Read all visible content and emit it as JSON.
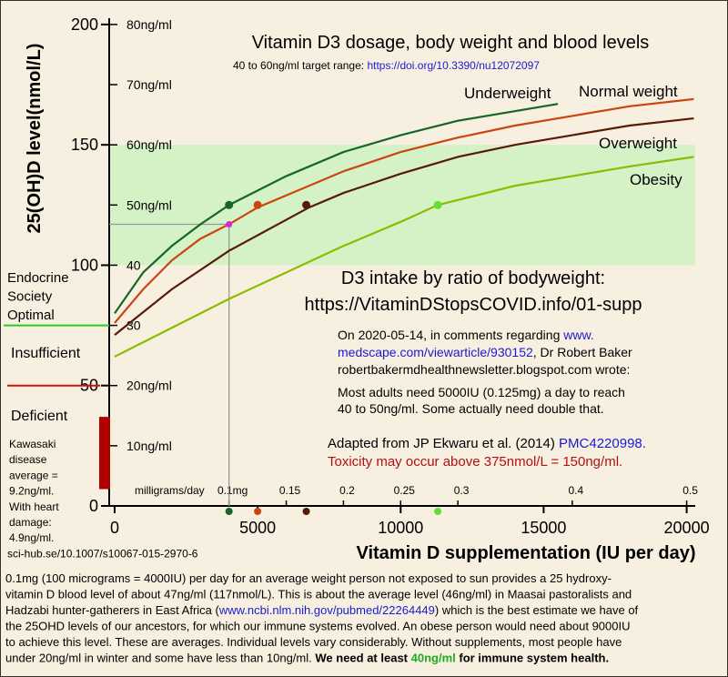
{
  "chart_data": {
    "type": "line",
    "title": "Vitamin D3 dosage, body weight and blood levels",
    "subtitle": [
      {
        "text": "40 to 60ng/ml target range: "
      },
      {
        "text": "https://doi.org/10.3390/nu12072097",
        "style": "link"
      }
    ],
    "ylabel": "25(OH)D level(nmol/L)",
    "xlabel": "Vitamin D supplementation (IU per day)",
    "xlim": [
      -190,
      20300
    ],
    "xticks": [
      0,
      5000,
      10000,
      15000,
      20000
    ],
    "ylim": [
      0,
      202.6
    ],
    "yticks": [
      0,
      50,
      100,
      150,
      200
    ],
    "y2lim": [
      0,
      81.04
    ],
    "y2ticks": [
      {
        "value": 10,
        "label": "10ng/ml"
      },
      {
        "value": 20,
        "label": "20ng/ml"
      },
      30,
      40,
      {
        "value": 50,
        "label": "50ng/ml"
      },
      {
        "value": 60,
        "label": "60ng/ml"
      },
      {
        "value": 70,
        "label": "70ng/ml"
      },
      {
        "value": 80,
        "label": "80ng/ml"
      }
    ],
    "x2lim": [
      -0.00475,
      0.5075
    ],
    "x2label": "milligrams/day",
    "x2ticks": [
      {
        "value": 0.1,
        "label": "0.1mg"
      },
      0.15,
      0.2,
      0.25,
      0.3,
      0.4,
      0.5
    ],
    "target_band": {
      "range": [
        100,
        150
      ],
      "color": "#d5f2c6"
    },
    "series": [
      {
        "name": "Underweight",
        "color": "#16662a",
        "x": [
          0,
          1000,
          2000,
          3000,
          4000,
          6000,
          8000,
          10000,
          12000,
          15500
        ],
        "values": [
          80,
          97,
          108,
          117,
          125,
          137,
          147,
          154,
          160,
          167
        ]
      },
      {
        "name": "Normal weight",
        "color": "#cc4410",
        "x": [
          0,
          1000,
          2000,
          3000,
          4000,
          5000,
          6000,
          8000,
          10000,
          12000,
          14000,
          16000,
          18000,
          20250
        ],
        "values": [
          76,
          90,
          102,
          111,
          117,
          124,
          129,
          139,
          147,
          153,
          158,
          162,
          166,
          169
        ]
      },
      {
        "name": "Overweight",
        "color": "#5a1a08",
        "x": [
          0,
          2000,
          4000,
          6800,
          8000,
          10000,
          12000,
          14000,
          16000,
          18000,
          20250
        ],
        "values": [
          71,
          90,
          106,
          124,
          130,
          138,
          145,
          150,
          154,
          158,
          161
        ]
      },
      {
        "name": "Obesity",
        "color": "#8cbc00",
        "x": [
          0,
          2000,
          4000,
          6000,
          8000,
          10000,
          11300,
          14000,
          16000,
          18000,
          20250
        ],
        "values": [
          62,
          74,
          86,
          97,
          108,
          118,
          125,
          133,
          137,
          141,
          145
        ]
      }
    ],
    "markers": [
      {
        "x": 4000,
        "y": 125,
        "color": "#16662a"
      },
      {
        "x": 5000,
        "y": 125,
        "color": "#cc4410"
      },
      {
        "x": 6700,
        "y": 125,
        "color": "#5a1a08"
      },
      {
        "x": 11300,
        "y": 125,
        "color": "#66dd33"
      }
    ],
    "reference_point": {
      "x": 4000,
      "y": 117,
      "color": "#e020e0"
    },
    "annotations": {
      "intake_title": [
        "D3 intake by ratio of bodyweight:",
        "https://VitaminDStopsCOVID.info/01-supp"
      ],
      "quote": [
        [
          {
            "text": "On 2020-05-14, in comments regarding "
          },
          {
            "text": "www.",
            "style": "link"
          }
        ],
        [
          {
            "text": "medscape.com/viewarticle/930152",
            "style": "link"
          },
          {
            "text": ", Dr Robert Baker"
          }
        ],
        [
          {
            "text": "robertbakermdhealthnewsletter.blogspot.com wrote:"
          }
        ],
        [
          {
            "text": "Most adults need 5000IU (0.125mg) a day to reach"
          }
        ],
        [
          {
            "text": "40 to 50ng/ml.  Some actually need double that."
          }
        ]
      ],
      "source": [
        [
          {
            "text": "Adapted from JP Ekwaru et al. (2014) "
          },
          {
            "text": "PMC4220998.",
            "style": "link"
          }
        ],
        [
          {
            "text": "Toxicity may occur above 375nmol/L = 150ng/ml.",
            "style": "red"
          }
        ]
      ],
      "optimal": {
        "lines": [
          "Endocrine",
          "Society",
          "Optimal"
        ],
        "value": 75,
        "color": "#22cc22"
      },
      "insufficient": {
        "text": "Insufficient",
        "color": "#999999"
      },
      "deficient": {
        "text": "Deficient",
        "value": 50,
        "color": "#d01010"
      },
      "kawasaki": {
        "lines": [
          "Kawasaki",
          "disease",
          "average =",
          "9.2ng/ml.",
          "With heart",
          "damage:",
          "4.9ng/ml.",
          "sci-hub.se/10.1007/s10067-015-2970-6"
        ],
        "range": [
          7,
          37
        ],
        "color": "#b00000"
      },
      "footer": [
        [
          {
            "text": "0.1mg (100 micrograms = 4000IU) per day for an average weight person not exposed to sun provides a 25 hydroxy-"
          }
        ],
        [
          {
            "text": "vitamin D blood level of about 47ng/ml (117nmol/L).  This is about the average level (46ng/ml) in Maasai pastoralists and"
          }
        ],
        [
          {
            "text": "Hadzabi hunter-gatherers in East Africa ("
          },
          {
            "text": "www.ncbi.nlm.nih.gov/pubmed/22264449",
            "style": "link"
          },
          {
            "text": ") which is the best estimate we have of"
          }
        ],
        [
          {
            "text": "the 25OHD levels of our ancestors, for which our immune systems evolved.  An obese person would need about 9000IU"
          }
        ],
        [
          {
            "text": "to achieve this level.  These are averages.  Individual levels vary considerably.  Without supplements, most people have"
          }
        ],
        [
          {
            "text": "under 20ng/ml in winter and some have less than 10ng/ml.  "
          },
          {
            "text": "We need at least ",
            "style": "bold"
          },
          {
            "text": "40ng/ml",
            "style": "bold-green"
          },
          {
            "text": " for immune system health.",
            "style": "bold"
          }
        ]
      ]
    }
  }
}
